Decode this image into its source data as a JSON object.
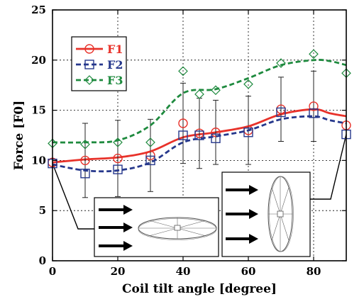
{
  "chart_data": {
    "type": "line",
    "xlabel": "Coil tilt angle [degree]",
    "ylabel": "Force [F0]",
    "xlim": [
      0,
      90
    ],
    "ylim": [
      0,
      25
    ],
    "xticks": [
      0,
      20,
      40,
      60,
      80
    ],
    "yticks": [
      0,
      5,
      10,
      15,
      20,
      25
    ],
    "grid": "dashed",
    "legend_position": "top-left",
    "series": [
      {
        "name": "F1",
        "color": "#e8322a",
        "line": "solid",
        "marker": "circle",
        "x": [
          0,
          10,
          20,
          30,
          40,
          45,
          50,
          60,
          70,
          80,
          90
        ],
        "y": [
          9.8,
          10.0,
          10.2,
          10.5,
          13.7,
          12.7,
          12.8,
          13.0,
          15.1,
          15.4,
          13.5
        ],
        "error": [
          0,
          3.7,
          3.8,
          3.6,
          4.0,
          3.5,
          3.2,
          3.4,
          3.2,
          3.5,
          0
        ],
        "curve_x": [
          0,
          10,
          20,
          30,
          40,
          50,
          60,
          70,
          80,
          85,
          90
        ],
        "curve_y": [
          9.8,
          10.1,
          10.3,
          10.9,
          12.3,
          12.8,
          13.4,
          14.6,
          15.1,
          14.7,
          14.4
        ]
      },
      {
        "name": "F2",
        "color": "#26388c",
        "line": "dashed",
        "marker": "square",
        "x": [
          0,
          10,
          20,
          30,
          40,
          45,
          50,
          60,
          70,
          80,
          90
        ],
        "y": [
          9.7,
          8.7,
          9.1,
          10.0,
          12.5,
          12.5,
          12.2,
          12.8,
          14.8,
          14.7,
          12.6
        ],
        "error": [
          0,
          0,
          0,
          0,
          0,
          0,
          0,
          0,
          0,
          0,
          0
        ],
        "curve_x": [
          0,
          10,
          20,
          30,
          40,
          50,
          60,
          70,
          80,
          85,
          90
        ],
        "curve_y": [
          9.6,
          9.0,
          9.0,
          9.8,
          11.8,
          12.4,
          13.0,
          14.1,
          14.4,
          14.0,
          13.7
        ]
      },
      {
        "name": "F3",
        "color": "#1e8a3e",
        "line": "dashed",
        "marker": "diamond",
        "x": [
          0,
          10,
          20,
          30,
          40,
          45,
          50,
          60,
          70,
          80,
          90
        ],
        "y": [
          11.7,
          11.6,
          11.8,
          11.8,
          18.9,
          16.6,
          17.0,
          17.6,
          19.7,
          20.6,
          18.7
        ],
        "error": [
          0,
          0,
          0,
          0,
          0,
          0,
          0,
          0,
          0,
          0,
          0
        ],
        "curve_x": [
          0,
          10,
          20,
          30,
          40,
          50,
          60,
          70,
          80,
          85,
          90
        ],
        "curve_y": [
          11.8,
          11.8,
          12.0,
          13.5,
          16.7,
          17.1,
          18.2,
          19.5,
          20.0,
          19.9,
          19.5
        ]
      }
    ],
    "insets": [
      {
        "name": "coil-horizontal",
        "anchor_x": 0,
        "anchor_y": 9.7
      },
      {
        "name": "coil-vertical",
        "anchor_x": 90,
        "anchor_y": 12.6
      }
    ]
  }
}
